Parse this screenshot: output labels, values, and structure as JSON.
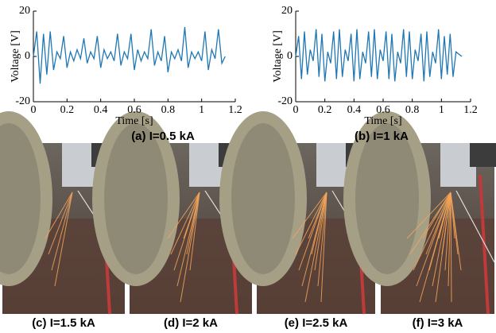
{
  "chart_data": [
    {
      "type": "line",
      "ylabel": "Voltage [V]",
      "xlabel": "Time [s]",
      "caption": "(a) I=0.5 kA",
      "xlim": [
        0,
        1.2
      ],
      "xticks": [
        0,
        0.2,
        0.4,
        0.6,
        0.8,
        1,
        1.2
      ],
      "ylim": [
        -20,
        20
      ],
      "yticks": [
        -20,
        0,
        20
      ],
      "x": [
        0,
        0.02,
        0.04,
        0.06,
        0.08,
        0.1,
        0.12,
        0.14,
        0.16,
        0.18,
        0.2,
        0.22,
        0.24,
        0.26,
        0.28,
        0.3,
        0.32,
        0.34,
        0.36,
        0.38,
        0.4,
        0.42,
        0.44,
        0.46,
        0.48,
        0.5,
        0.52,
        0.54,
        0.56,
        0.58,
        0.6,
        0.62,
        0.64,
        0.66,
        0.68,
        0.7,
        0.72,
        0.74,
        0.76,
        0.78,
        0.8,
        0.82,
        0.84,
        0.86,
        0.88,
        0.9,
        0.92,
        0.94,
        0.96,
        0.98,
        1,
        1.02,
        1.04,
        1.06,
        1.08,
        1.1,
        1.12,
        1.14
      ],
      "series": [
        {
          "color": "#1f77b4",
          "values": [
            0,
            11,
            -12,
            10,
            -8,
            11,
            -6,
            2,
            -1,
            9,
            -5,
            2,
            -2,
            3,
            -1,
            8,
            -3,
            2,
            -1,
            9,
            -5,
            3,
            -1,
            2,
            -2,
            10,
            -4,
            2,
            -1,
            10,
            -6,
            3,
            -2,
            2,
            -1,
            12,
            -4,
            2,
            -2,
            9,
            -7,
            2,
            -1,
            3,
            -2,
            13,
            -5,
            2,
            -1,
            2,
            -2,
            11,
            -6,
            3,
            -1,
            12,
            -3,
            0
          ]
        }
      ]
    },
    {
      "type": "line",
      "ylabel": "Voltage [V]",
      "xlabel": "Time [s]",
      "caption": "(b) I=1 kA",
      "xlim": [
        0,
        1.2
      ],
      "xticks": [
        0,
        0.2,
        0.4,
        0.6,
        0.8,
        1,
        1.2
      ],
      "ylim": [
        -20,
        20
      ],
      "yticks": [
        -20,
        0,
        20
      ],
      "x": [
        0,
        0.02,
        0.04,
        0.06,
        0.08,
        0.1,
        0.12,
        0.14,
        0.16,
        0.18,
        0.2,
        0.22,
        0.24,
        0.26,
        0.28,
        0.3,
        0.32,
        0.34,
        0.36,
        0.38,
        0.4,
        0.42,
        0.44,
        0.46,
        0.48,
        0.5,
        0.52,
        0.54,
        0.56,
        0.58,
        0.6,
        0.62,
        0.64,
        0.66,
        0.68,
        0.7,
        0.72,
        0.74,
        0.76,
        0.78,
        0.8,
        0.82,
        0.84,
        0.86,
        0.88,
        0.9,
        0.92,
        0.94,
        0.96,
        0.98,
        1,
        1.02,
        1.04,
        1.06,
        1.08,
        1.1,
        1.12,
        1.14
      ],
      "series": [
        {
          "color": "#1f77b4",
          "values": [
            0,
            9,
            -10,
            11,
            -8,
            3,
            -2,
            12,
            -9,
            10,
            -11,
            2,
            -3,
            11,
            -10,
            12,
            -9,
            3,
            -2,
            10,
            -11,
            12,
            -10,
            2,
            -3,
            11,
            -9,
            12,
            -10,
            3,
            -2,
            11,
            -10,
            10,
            -11,
            2,
            -3,
            12,
            -9,
            11,
            -10,
            3,
            -2,
            10,
            -11,
            11,
            -9,
            2,
            -3,
            12,
            -10,
            9,
            -8,
            10,
            -9,
            2,
            1,
            0
          ]
        }
      ]
    }
  ],
  "photos": [
    {
      "caption": "(c) I=1.5 kA"
    },
    {
      "caption": "(d) I=2 kA"
    },
    {
      "caption": "(e) I=2.5 kA"
    },
    {
      "caption": "(f) I=3 kA"
    }
  ]
}
